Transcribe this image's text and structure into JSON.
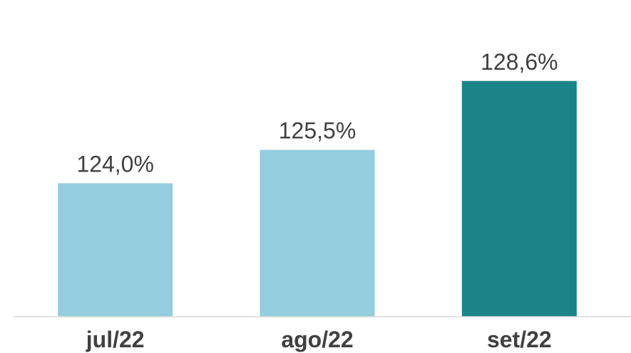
{
  "chart_data": {
    "type": "bar",
    "categories": [
      "jul/22",
      "ago/22",
      "set/22"
    ],
    "values": [
      124.0,
      125.5,
      128.6
    ],
    "value_labels": [
      "124,0%",
      "125,5%",
      "128,6%"
    ],
    "title": "",
    "xlabel": "",
    "ylabel": "",
    "ylim": [
      118,
      130
    ],
    "grid": false,
    "legend": "none",
    "colors": [
      "#94cddd",
      "#94cddd",
      "#1c8389"
    ],
    "baseline_color": "#d9d9d9"
  }
}
